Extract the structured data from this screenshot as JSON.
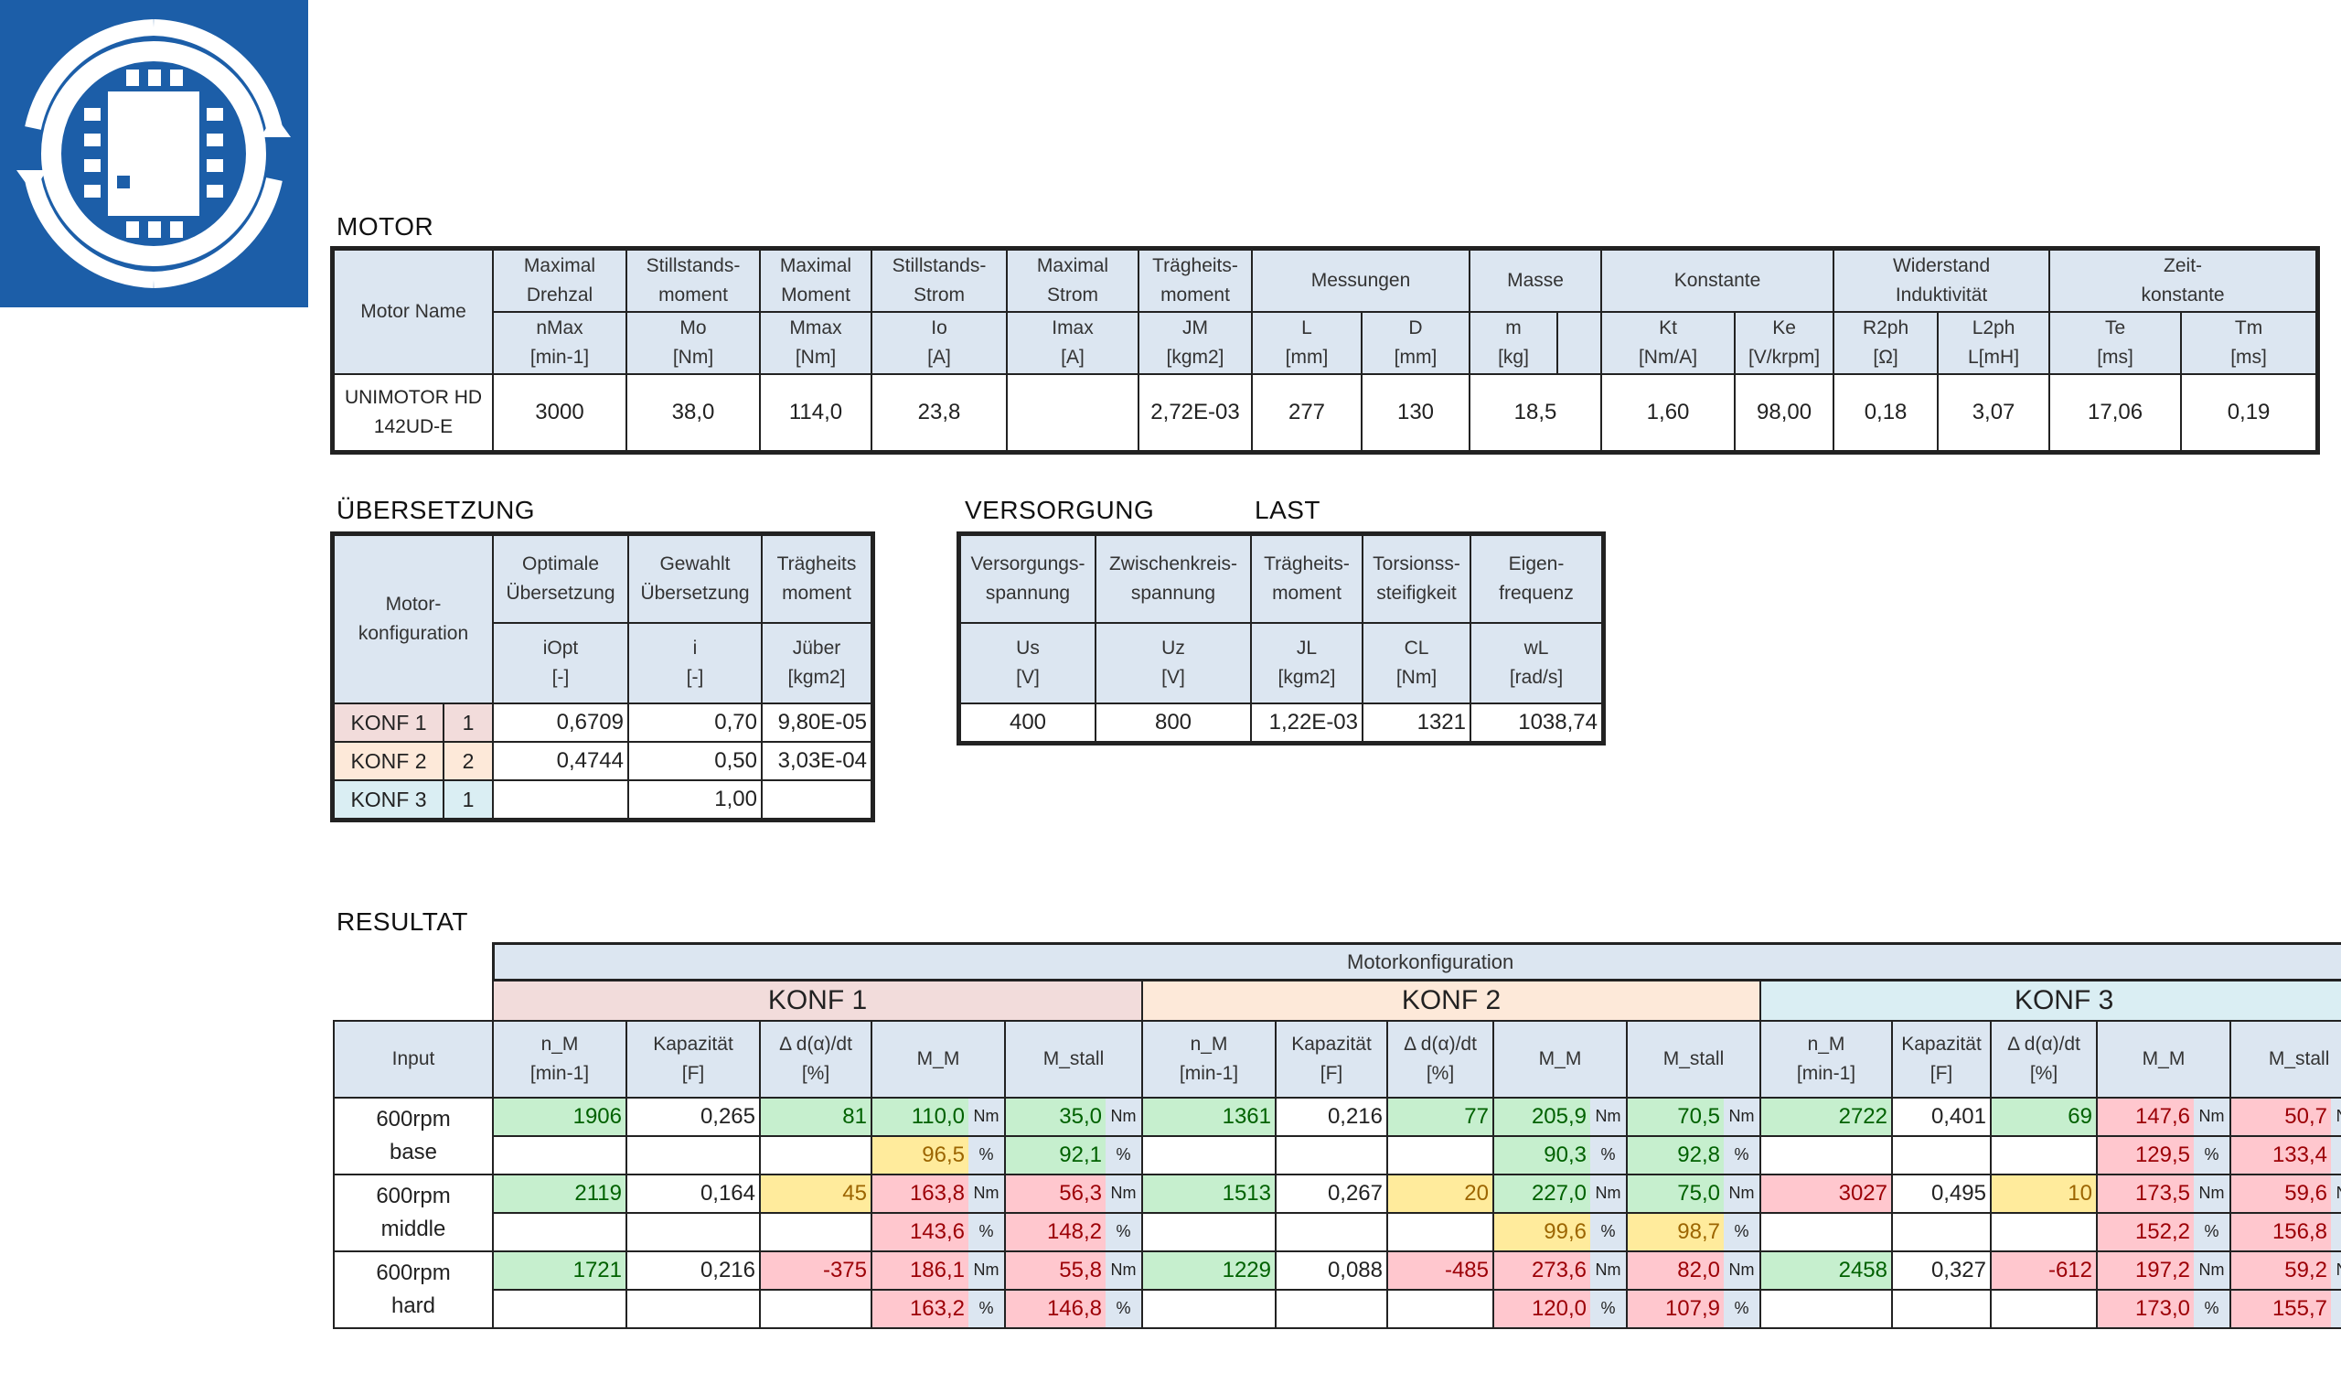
{
  "sections": {
    "motor": "MOTOR",
    "uebersetzung": "ÜBERSETZUNG",
    "versorgung": "VERSORGUNG",
    "last": "LAST",
    "resultat": "RESULTAT"
  },
  "motor": {
    "name_header": "Motor Name",
    "groups": [
      {
        "l1": "Maximal",
        "l2": "Drehzal",
        "sym": "nMax",
        "unit": "[min-1]"
      },
      {
        "l1": "Stillstands-",
        "l2": "moment",
        "sym": "Mo",
        "unit": "[Nm]"
      },
      {
        "l1": "Maximal",
        "l2": "Moment",
        "sym": "Mmax",
        "unit": "[Nm]"
      },
      {
        "l1": "Stillstands-",
        "l2": "Strom",
        "sym": "Io",
        "unit": "[A]"
      },
      {
        "l1": "Maximal",
        "l2": "Strom",
        "sym": "Imax",
        "unit": "[A]"
      },
      {
        "l1": "Trägheits-",
        "l2": "moment",
        "sym": "JM",
        "unit": "[kgm2]"
      }
    ],
    "messungen": "Messungen",
    "masse": "Masse",
    "konstante": "Konstante",
    "widerstand_l1": "Widerstand",
    "widerstand_l2": "Induktivität",
    "zeit_l1": "Zeit-",
    "zeit_l2": "konstante",
    "subs": [
      {
        "sym": "L",
        "unit": "[mm]"
      },
      {
        "sym": "D",
        "unit": "[mm]"
      },
      {
        "sym": "m",
        "unit": "[kg]"
      },
      {
        "sym": "Kt",
        "unit": "[Nm/A]"
      },
      {
        "sym": "Ke",
        "unit": "[V/krpm]"
      },
      {
        "sym": "R2ph",
        "unit": "[Ω]"
      },
      {
        "sym": "L2ph",
        "unit": "L[mH]"
      },
      {
        "sym": "Te",
        "unit": "[ms]"
      },
      {
        "sym": "Tm",
        "unit": "[ms]"
      }
    ],
    "row": {
      "name1": "UNIMOTOR HD",
      "name2": "142UD-E",
      "nmax": "3000",
      "mo": "38,0",
      "mmax": "114,0",
      "io": "23,8",
      "imax": "",
      "jm": "2,72E-03",
      "L": "277",
      "D": "130",
      "m": "18,5",
      "kt": "1,60",
      "ke": "98,00",
      "r2ph": "0,18",
      "l2ph": "3,07",
      "te": "17,06",
      "tm": "0,19"
    }
  },
  "ueber": {
    "mk1": "Motor-",
    "mk2": "konfiguration",
    "h": [
      {
        "l1": "Optimale",
        "l2": "Übersetzung",
        "sym": "iOpt",
        "unit": "[-]"
      },
      {
        "l1": "Gewahlt",
        "l2": "Übersetzung",
        "sym": "i",
        "unit": "[-]"
      },
      {
        "l1": "Trägheits",
        "l2": "moment",
        "sym": "Jüber",
        "unit": "[kgm2]"
      }
    ],
    "rows": [
      {
        "name": "KONF 1",
        "n": "1",
        "iopt": "0,6709",
        "i": "0,70",
        "j": "9,80E-05"
      },
      {
        "name": "KONF 2",
        "n": "2",
        "iopt": "0,4744",
        "i": "0,50",
        "j": "3,03E-04"
      },
      {
        "name": "KONF 3",
        "n": "1",
        "iopt": "",
        "i": "1,00",
        "j": ""
      }
    ]
  },
  "versorgung": {
    "h": [
      {
        "l1": "Versorgungs-",
        "l2": "spannung",
        "sym": "Us",
        "unit": "[V]",
        "val": "400"
      },
      {
        "l1": "Zwischenkreis-",
        "l2": "spannung",
        "sym": "Uz",
        "unit": "[V]",
        "val": "800"
      },
      {
        "l1": "Trägheits-",
        "l2": "moment",
        "sym": "JL",
        "unit": "[kgm2]",
        "val": "1,22E-03"
      },
      {
        "l1": "Torsionss-",
        "l2": "steifigkeit",
        "sym": "CL",
        "unit": "[Nm]",
        "val": "1321"
      },
      {
        "l1": "Eigen-",
        "l2": "frequenz",
        "sym": "wL",
        "unit": "[rad/s]",
        "val": "1038,74"
      }
    ]
  },
  "result": {
    "motorkonfig": "Motorkonfiguration",
    "konf": [
      "KONF 1",
      "KONF 2",
      "KONF 3"
    ],
    "input": "Input",
    "cols": {
      "nm1": "n_M",
      "nm2": "[min-1]",
      "kap1": "Kapazität",
      "kap2": "[F]",
      "dd1": "Δ d(α)/dt",
      "dd2": "[%]",
      "mm": "M_M",
      "ms": "M_stall"
    },
    "u_nm": "Nm",
    "u_pct": "%",
    "rows": [
      {
        "in1": "600rpm",
        "in2": "base",
        "k": [
          {
            "nm": "1906",
            "kap": "0,265",
            "dd": "81",
            "mm": "110,0",
            "ms": "35,0",
            "mmp": "96,5",
            "msp": "92,1"
          },
          {
            "nm": "1361",
            "kap": "0,216",
            "dd": "77",
            "mm": "205,9",
            "ms": "70,5",
            "mmp": "90,3",
            "msp": "92,8"
          },
          {
            "nm": "2722",
            "kap": "0,401",
            "dd": "69",
            "mm": "147,6",
            "ms": "50,7",
            "mmp": "129,5",
            "msp": "133,4"
          }
        ]
      },
      {
        "in1": "600rpm",
        "in2": "middle",
        "k": [
          {
            "nm": "2119",
            "kap": "0,164",
            "dd": "45",
            "mm": "163,8",
            "ms": "56,3",
            "mmp": "143,6",
            "msp": "148,2"
          },
          {
            "nm": "1513",
            "kap": "0,267",
            "dd": "20",
            "mm": "227,0",
            "ms": "75,0",
            "mmp": "99,6",
            "msp": "98,7"
          },
          {
            "nm": "3027",
            "kap": "0,495",
            "dd": "10",
            "mm": "173,5",
            "ms": "59,6",
            "mmp": "152,2",
            "msp": "156,8"
          }
        ]
      },
      {
        "in1": "600rpm",
        "in2": "hard",
        "k": [
          {
            "nm": "1721",
            "kap": "0,216",
            "dd": "-375",
            "mm": "186,1",
            "ms": "55,8",
            "mmp": "163,2",
            "msp": "146,8"
          },
          {
            "nm": "1229",
            "kap": "0,088",
            "dd": "-485",
            "mm": "273,6",
            "ms": "82,0",
            "mmp": "120,0",
            "msp": "107,9"
          },
          {
            "nm": "2458",
            "kap": "0,327",
            "dd": "-612",
            "mm": "197,2",
            "ms": "59,2",
            "mmp": "173,0",
            "msp": "155,7"
          }
        ]
      }
    ]
  }
}
